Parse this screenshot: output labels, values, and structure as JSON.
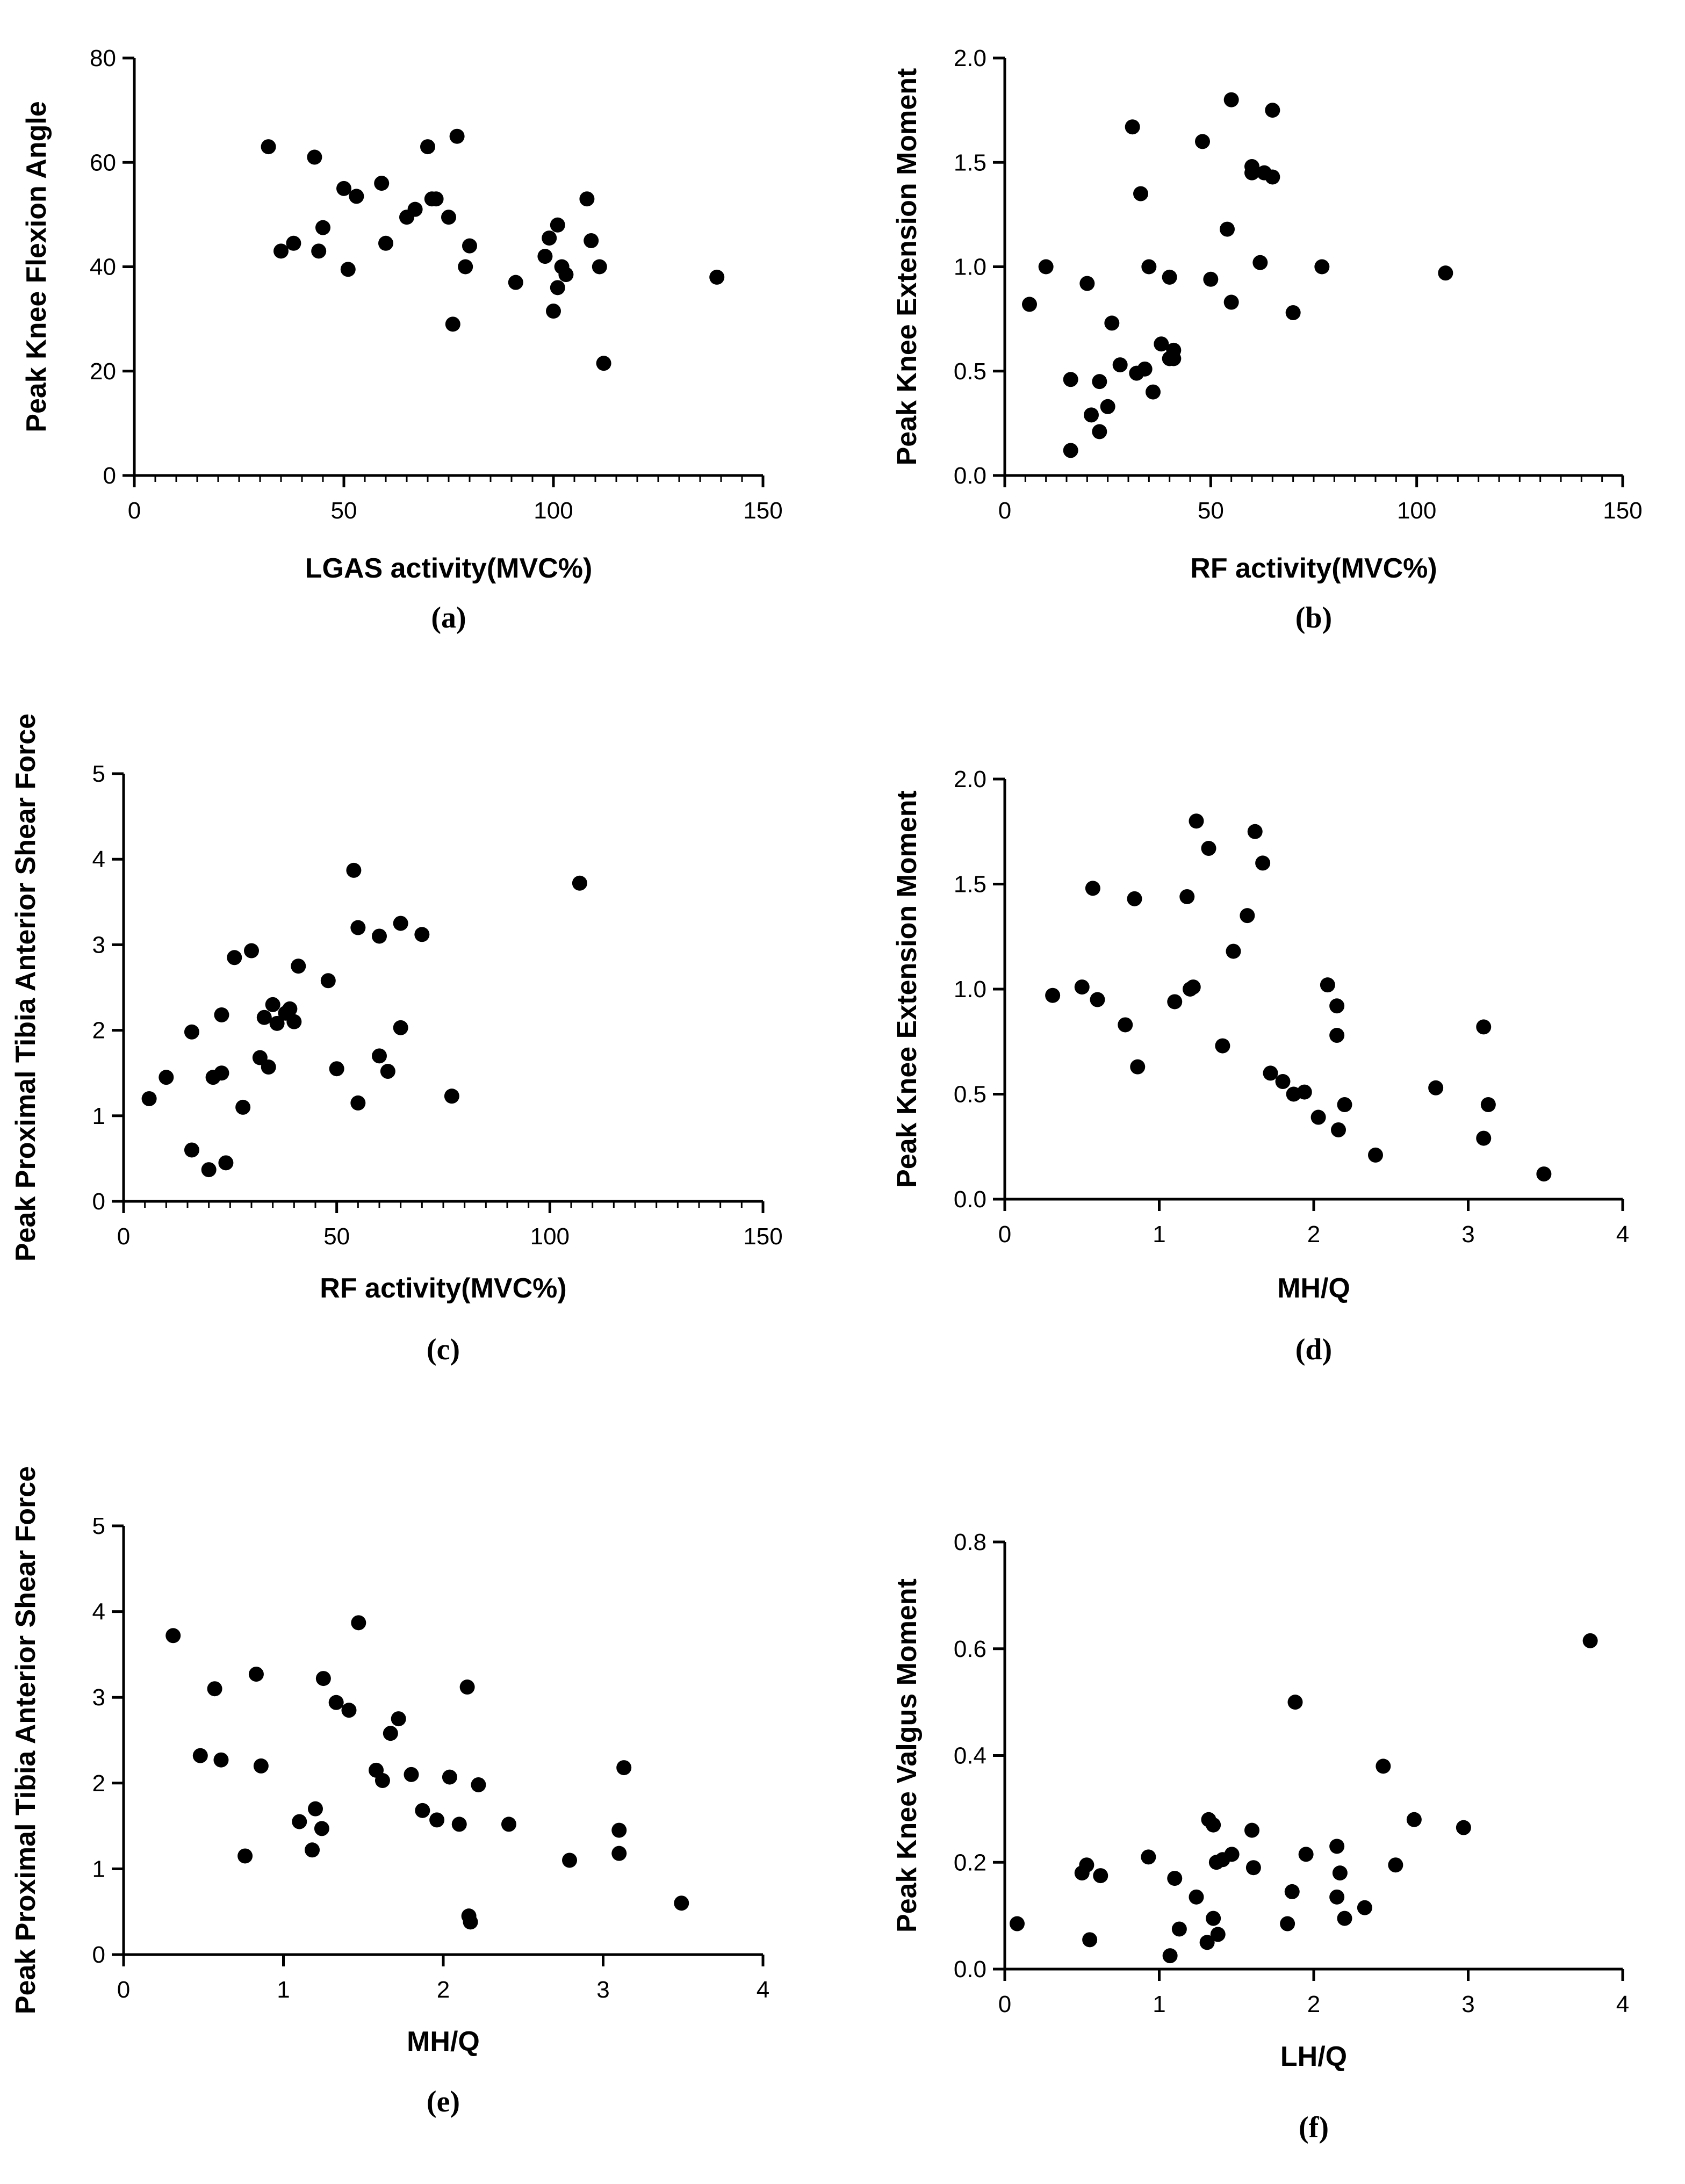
{
  "figure": {
    "title": ""
  },
  "chart_data": [
    {
      "id": "a",
      "type": "scatter",
      "panel_label": "(a)",
      "xlabel": "LGAS activity(MVC%)",
      "ylabel": "Peak Knee Flexion Angle",
      "xlim": [
        0,
        150
      ],
      "ylim": [
        0,
        80
      ],
      "xticks": [
        0,
        50,
        100,
        150
      ],
      "yticks": [
        0,
        20,
        40,
        60,
        80
      ],
      "xminor": 5,
      "yminor": 1,
      "grid": false,
      "x": [
        32,
        35,
        38,
        43,
        44,
        45,
        50,
        51,
        53,
        59,
        60,
        65,
        67,
        70,
        71,
        72,
        75,
        76,
        77,
        79,
        80,
        91,
        98,
        99,
        100,
        101,
        101,
        102,
        103,
        108,
        109,
        111,
        112,
        139
      ],
      "y": [
        63,
        43,
        44.5,
        61,
        43,
        47.5,
        55,
        39.5,
        53.5,
        56,
        44.5,
        49.5,
        51,
        63,
        53,
        53,
        49.5,
        29,
        65,
        40,
        44,
        37,
        42,
        45.5,
        31.5,
        36,
        48,
        40,
        38.5,
        53,
        45,
        40,
        21.5,
        38
      ]
    },
    {
      "id": "b",
      "type": "scatter",
      "panel_label": "(b)",
      "xlabel": "RF activity(MVC%)",
      "ylabel": "Peak Knee Extension Moment",
      "xlim": [
        0,
        150
      ],
      "ylim": [
        0,
        2.0
      ],
      "xticks": [
        0,
        50,
        100,
        150
      ],
      "yticks": [
        0.0,
        0.5,
        1.0,
        1.5,
        2.0
      ],
      "xminor": 5,
      "yminor": 1,
      "grid": false,
      "x": [
        6,
        10,
        16,
        16,
        20,
        21,
        23,
        23,
        25,
        26,
        28,
        31,
        32,
        33,
        34,
        35,
        36,
        38,
        40,
        40,
        41,
        41,
        48,
        50,
        54,
        55,
        55,
        60,
        60,
        62,
        63,
        65,
        65,
        70,
        77,
        107
      ],
      "y": [
        0.82,
        1.0,
        0.12,
        0.46,
        0.92,
        0.29,
        0.21,
        0.45,
        0.33,
        0.73,
        0.53,
        1.67,
        0.49,
        1.35,
        0.51,
        1.0,
        0.4,
        0.63,
        0.56,
        0.95,
        0.6,
        0.56,
        1.6,
        0.94,
        1.18,
        1.8,
        0.83,
        1.48,
        1.45,
        1.02,
        1.45,
        1.43,
        1.75,
        0.78,
        1.0,
        0.97
      ]
    },
    {
      "id": "c",
      "type": "scatter",
      "panel_label": "(c)",
      "xlabel": "RF activity(MVC%)",
      "ylabel": "Peak Proximal Tibia Anterior Shear Force",
      "xlim": [
        0,
        150
      ],
      "ylim": [
        0,
        5
      ],
      "xticks": [
        0,
        50,
        100,
        150
      ],
      "yticks": [
        0,
        1,
        2,
        3,
        4,
        5
      ],
      "xminor": 5,
      "yminor": 1,
      "grid": false,
      "x": [
        6,
        10,
        16,
        16,
        20,
        21,
        23,
        23,
        24,
        26,
        28,
        30,
        32,
        33,
        34,
        35,
        36,
        38,
        39,
        40,
        41,
        48,
        50,
        54,
        55,
        55,
        60,
        60,
        62,
        65,
        65,
        70,
        77,
        107
      ],
      "y": [
        1.2,
        1.45,
        1.98,
        0.6,
        0.37,
        1.45,
        2.18,
        1.5,
        0.45,
        2.85,
        1.1,
        2.93,
        1.68,
        2.15,
        1.57,
        2.3,
        2.08,
        2.2,
        2.25,
        2.1,
        2.75,
        2.58,
        1.55,
        3.87,
        3.2,
        1.15,
        3.1,
        1.7,
        1.52,
        3.25,
        2.03,
        3.12,
        1.23,
        3.72
      ]
    },
    {
      "id": "d",
      "type": "scatter",
      "panel_label": "(d)",
      "xlabel": "MH/Q",
      "ylabel": "Peak Knee Extension Moment",
      "xlim": [
        0,
        4
      ],
      "ylim": [
        0,
        2.0
      ],
      "xticks": [
        0,
        1,
        2,
        3,
        4
      ],
      "yticks": [
        0.0,
        0.5,
        1.0,
        1.5,
        2.0
      ],
      "xminor": 1,
      "yminor": 1,
      "grid": false,
      "x": [
        0.31,
        0.5,
        0.57,
        0.6,
        0.78,
        0.84,
        0.86,
        1.1,
        1.18,
        1.2,
        1.22,
        1.24,
        1.32,
        1.41,
        1.48,
        1.57,
        1.62,
        1.67,
        1.72,
        1.8,
        1.87,
        1.94,
        2.03,
        2.09,
        2.15,
        2.15,
        2.16,
        2.2,
        2.4,
        2.79,
        3.1,
        3.1,
        3.13,
        3.49
      ],
      "y": [
        0.97,
        1.01,
        1.48,
        0.95,
        0.83,
        1.43,
        0.63,
        0.94,
        1.44,
        1.0,
        1.01,
        1.8,
        1.67,
        0.73,
        1.18,
        1.35,
        1.75,
        1.6,
        0.6,
        0.56,
        0.5,
        0.51,
        0.39,
        1.02,
        0.78,
        0.92,
        0.33,
        0.45,
        0.21,
        0.53,
        0.82,
        0.29,
        0.45,
        0.12
      ]
    },
    {
      "id": "e",
      "type": "scatter",
      "panel_label": "(e)",
      "xlabel": "MH/Q",
      "ylabel": "Peak Proximal Tibia Anterior Shear Force",
      "xlim": [
        0,
        4
      ],
      "ylim": [
        0,
        5
      ],
      "xticks": [
        0,
        1,
        2,
        3,
        4
      ],
      "yticks": [
        0,
        1,
        2,
        3,
        4,
        5
      ],
      "xminor": 1,
      "yminor": 1,
      "grid": false,
      "x": [
        0.31,
        0.48,
        0.57,
        0.61,
        0.76,
        0.83,
        0.86,
        1.1,
        1.18,
        1.2,
        1.24,
        1.25,
        1.33,
        1.41,
        1.47,
        1.58,
        1.62,
        1.67,
        1.72,
        1.8,
        1.87,
        1.96,
        2.04,
        2.1,
        2.15,
        2.16,
        2.17,
        2.22,
        2.41,
        2.79,
        3.1,
        3.1,
        3.13,
        3.49
      ],
      "y": [
        3.72,
        2.32,
        3.1,
        2.27,
        1.15,
        3.27,
        2.2,
        1.55,
        1.22,
        1.7,
        1.47,
        3.22,
        2.94,
        2.85,
        3.87,
        2.15,
        2.03,
        2.58,
        2.75,
        2.1,
        1.68,
        1.57,
        2.07,
        1.52,
        3.12,
        0.45,
        0.38,
        1.98,
        1.52,
        1.1,
        1.45,
        1.18,
        2.18,
        0.6
      ]
    },
    {
      "id": "f",
      "type": "scatter",
      "panel_label": "(f)",
      "xlabel": "LH/Q",
      "ylabel": "Peak Knee Valgus Moment",
      "xlim": [
        0,
        4
      ],
      "ylim": [
        0,
        0.8
      ],
      "xticks": [
        0,
        1,
        2,
        3,
        4
      ],
      "yticks": [
        0.0,
        0.2,
        0.4,
        0.6,
        0.8
      ],
      "xminor": 1,
      "yminor": 1,
      "grid": false,
      "x": [
        0.08,
        0.5,
        0.53,
        0.55,
        0.62,
        0.93,
        1.07,
        1.1,
        1.13,
        1.24,
        1.31,
        1.32,
        1.35,
        1.35,
        1.37,
        1.38,
        1.41,
        1.47,
        1.6,
        1.61,
        1.83,
        1.86,
        1.88,
        1.95,
        2.15,
        2.15,
        2.17,
        2.2,
        2.33,
        2.45,
        2.53,
        2.65,
        2.97,
        3.79
      ],
      "y": [
        0.085,
        0.18,
        0.195,
        0.055,
        0.175,
        0.21,
        0.025,
        0.17,
        0.075,
        0.135,
        0.05,
        0.28,
        0.27,
        0.095,
        0.2,
        0.065,
        0.205,
        0.215,
        0.26,
        0.19,
        0.085,
        0.145,
        0.5,
        0.215,
        0.23,
        0.135,
        0.18,
        0.095,
        0.115,
        0.38,
        0.195,
        0.28,
        0.265,
        0.615
      ]
    }
  ]
}
